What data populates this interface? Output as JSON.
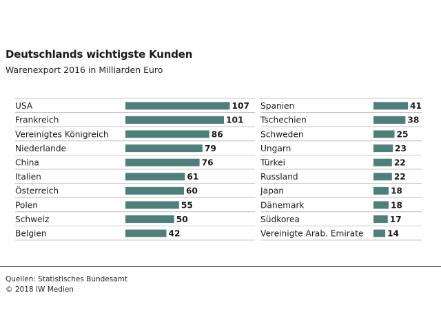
{
  "chart_data": {
    "type": "bar",
    "orientation": "horizontal",
    "title": "Deutschlands wichtigste Kunden",
    "subtitle": "Warenexport 2016 in Milliarden Euro",
    "bar_color": "#4e7f78",
    "panels": [
      {
        "categories": [
          "USA",
          "Frankreich",
          "Vereinigtes Königreich",
          "Niederlande",
          "China",
          "Italien",
          "Österreich",
          "Polen",
          "Schweiz",
          "Belgien"
        ],
        "values": [
          107,
          101,
          86,
          79,
          76,
          61,
          60,
          55,
          50,
          42
        ]
      },
      {
        "categories": [
          "Spanien",
          "Tschechien",
          "Schweden",
          "Ungarn",
          "Türkei",
          "Russland",
          "Japan",
          "Dänemark",
          "Südkorea",
          "Vereinigte Arab. Emirate"
        ],
        "values": [
          41,
          38,
          25,
          23,
          22,
          22,
          18,
          18,
          17,
          14
        ]
      }
    ]
  },
  "footer": {
    "source": "Quellen: Statistisches Bundesamt",
    "copyright": "© 2018 IW Medien"
  }
}
